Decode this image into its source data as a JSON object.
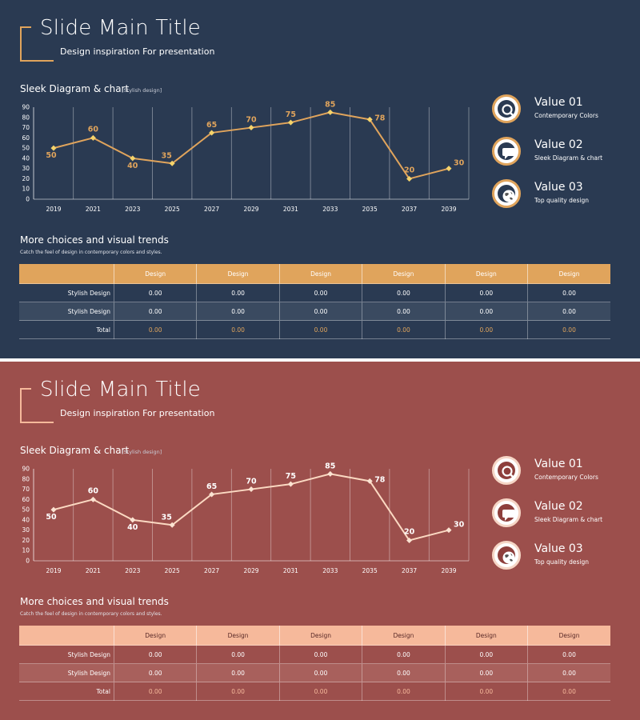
{
  "slides": [
    {
      "theme": {
        "bg": "#2a3a52",
        "accent": "#e0a45c",
        "line": "#e0a45c",
        "point": "#f5d36b",
        "label": "#e0a45c",
        "stripe": "#3a4a60",
        "icon_ring": "#e0a45c",
        "icon_inner": "#2a3a52"
      },
      "title": "Slide Main Title",
      "subtitle": "Design inspiration For presentation",
      "chart_title": "Sleek Diagram & chart",
      "chart_tag": "[Stylish design]",
      "values": [
        {
          "title": "Value 01",
          "desc": "Contemporary Colors",
          "icon": "search-icon"
        },
        {
          "title": "Value 02",
          "desc": "Sleek Diagram & chart",
          "icon": "chat-bubble-icon"
        },
        {
          "title": "Value 03",
          "desc": "Top quality design",
          "icon": "globe-icon"
        }
      ],
      "more_title": "More choices and visual trends",
      "more_sub": "Catch the feel of design in contemporary colors and styles.",
      "table": {
        "headers": [
          "",
          "Design",
          "Design",
          "Design",
          "Design",
          "Design",
          "Design"
        ],
        "rows": [
          {
            "label": "Stylish Design",
            "cells": [
              "0.00",
              "0.00",
              "0.00",
              "0.00",
              "0.00",
              "0.00"
            ]
          },
          {
            "label": "Stylish Design",
            "cells": [
              "0.00",
              "0.00",
              "0.00",
              "0.00",
              "0.00",
              "0.00"
            ]
          },
          {
            "label": "Total",
            "cells": [
              "0.00",
              "0.00",
              "0.00",
              "0.00",
              "0.00",
              "0.00"
            ]
          }
        ]
      }
    },
    {
      "theme": {
        "bg": "#9c4f4c",
        "accent": "#f6b99b",
        "line": "#fbd9c2",
        "point": "#fbe3d2",
        "label": "#ffffff",
        "stripe": "#a8605c",
        "icon_ring": "#f6d6c6",
        "icon_inner": "#8e3f3c"
      },
      "title": "Slide Main Title",
      "subtitle": "Design inspiration For presentation",
      "chart_title": "Sleek Diagram & chart",
      "chart_tag": "[Stylish design]",
      "values": [
        {
          "title": "Value 01",
          "desc": "Contemporary Colors",
          "icon": "search-icon"
        },
        {
          "title": "Value 02",
          "desc": "Sleek Diagram & chart",
          "icon": "chat-bubble-icon"
        },
        {
          "title": "Value 03",
          "desc": "Top quality design",
          "icon": "globe-icon"
        }
      ],
      "more_title": "More choices and visual trends",
      "more_sub": "Catch the feel of design in contemporary colors and styles.",
      "table": {
        "headers": [
          "",
          "Design",
          "Design",
          "Design",
          "Design",
          "Design",
          "Design"
        ],
        "rows": [
          {
            "label": "Stylish Design",
            "cells": [
              "0.00",
              "0.00",
              "0.00",
              "0.00",
              "0.00",
              "0.00"
            ]
          },
          {
            "label": "Stylish Design",
            "cells": [
              "0.00",
              "0.00",
              "0.00",
              "0.00",
              "0.00",
              "0.00"
            ]
          },
          {
            "label": "Total",
            "cells": [
              "0.00",
              "0.00",
              "0.00",
              "0.00",
              "0.00",
              "0.00"
            ]
          }
        ]
      }
    }
  ],
  "chart_data": [
    {
      "type": "line",
      "title": "Sleek Diagram & chart",
      "categories": [
        "2019",
        "2021",
        "2023",
        "2025",
        "2027",
        "2029",
        "2031",
        "2033",
        "2035",
        "2037",
        "2039"
      ],
      "values": [
        50,
        60,
        40,
        35,
        65,
        70,
        75,
        85,
        78,
        20,
        30
      ],
      "yticks": [
        "0",
        "10",
        "20",
        "30",
        "40",
        "50",
        "60",
        "70",
        "80",
        "90"
      ],
      "ylim": [
        0,
        90
      ],
      "xlabel": "",
      "ylabel": "",
      "grid": "vertical"
    },
    {
      "type": "line",
      "title": "Sleek Diagram & chart",
      "categories": [
        "2019",
        "2021",
        "2023",
        "2025",
        "2027",
        "2029",
        "2031",
        "2033",
        "2035",
        "2037",
        "2039"
      ],
      "values": [
        50,
        60,
        40,
        35,
        65,
        70,
        75,
        85,
        78,
        20,
        30
      ],
      "yticks": [
        "0",
        "10",
        "20",
        "30",
        "40",
        "50",
        "60",
        "70",
        "80",
        "90"
      ],
      "ylim": [
        0,
        90
      ],
      "xlabel": "",
      "ylabel": "",
      "grid": "vertical"
    }
  ]
}
